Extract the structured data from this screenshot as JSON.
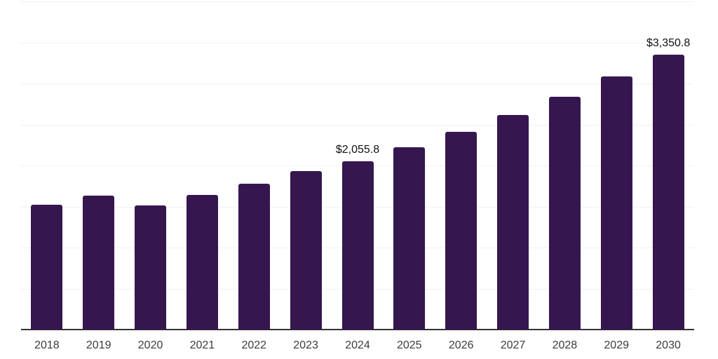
{
  "chart_data": {
    "type": "bar",
    "title": "",
    "subtitle": "",
    "xlabel": "",
    "ylabel": "",
    "categories": [
      "2018",
      "2019",
      "2020",
      "2021",
      "2022",
      "2023",
      "2024",
      "2025",
      "2026",
      "2027",
      "2028",
      "2029",
      "2030"
    ],
    "values": [
      1520,
      1630,
      1510,
      1638,
      1775,
      1928,
      2055.8,
      2226,
      2414,
      2618,
      2840,
      3087,
      3350.8
    ],
    "value_labels": [
      {
        "category": "2024",
        "text": "$2,055.8"
      },
      {
        "category": "2030",
        "text": "$3,350.8"
      }
    ],
    "ylim": [
      0,
      4000
    ],
    "gridline_step": 500,
    "grid": "horizontal",
    "y_axis_tick_labels_visible": false,
    "legend_position": "none",
    "colors": {
      "bar": "#36164f",
      "axis_line": "#333333",
      "gridline": "#f1f1f1",
      "tick_label": "#3c3c3c",
      "value_label": "#111111",
      "background": "#ffffff"
    }
  }
}
